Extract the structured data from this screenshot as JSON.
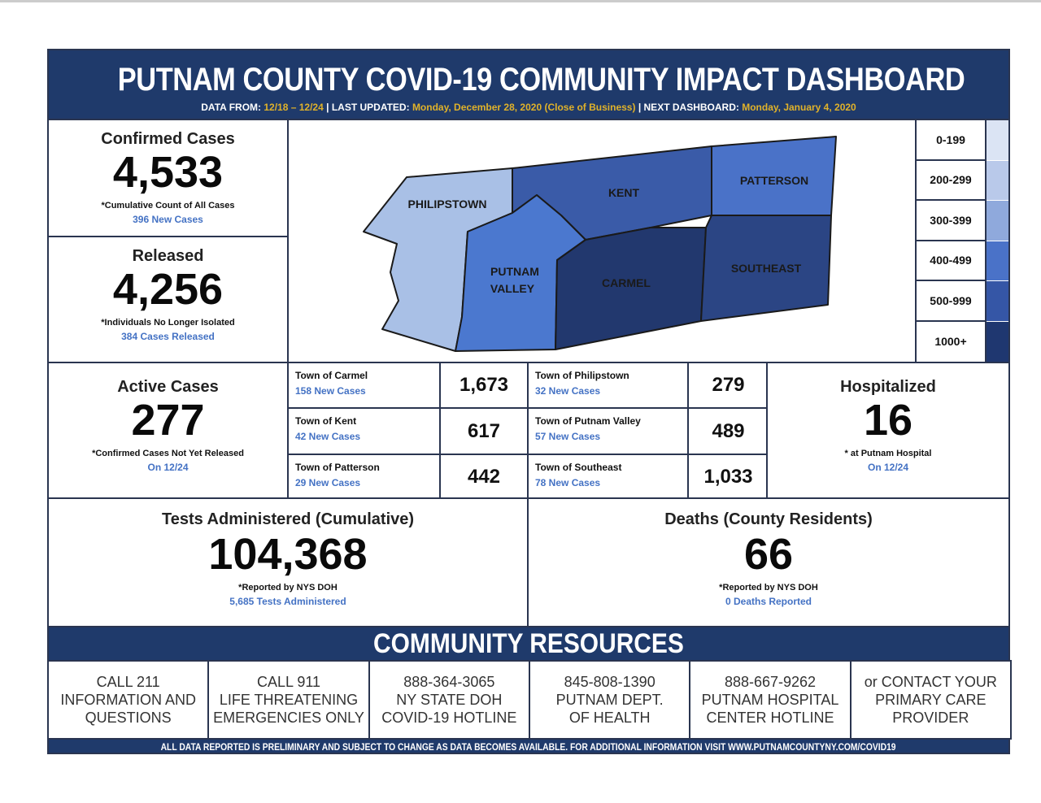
{
  "header": {
    "title": "PUTNAM COUNTY COVID-19 COMMUNITY IMPACT DASHBOARD",
    "data_from_label": "DATA FROM:",
    "data_from": "12/18 – 12/24",
    "last_updated_label": "| LAST UPDATED:",
    "last_updated": "Monday, December 28, 2020 (Close of Business)",
    "next_label": "| NEXT DASHBOARD:",
    "next": "Monday, January 4, 2020"
  },
  "confirmed": {
    "title": "Confirmed Cases",
    "value": "4,533",
    "note": "*Cumulative Count of All Cases",
    "sub": "396 New Cases"
  },
  "released": {
    "title": "Released",
    "value": "4,256",
    "note": "*Individuals No Longer Isolated",
    "sub": "384 Cases Released"
  },
  "active": {
    "title": "Active Cases",
    "value": "277",
    "note": "*Confirmed Cases Not Yet Released",
    "sub": "On 12/24"
  },
  "hospitalized": {
    "title": "Hospitalized",
    "value": "16",
    "note": "* at Putnam Hospital",
    "sub": "On 12/24"
  },
  "tests": {
    "title": "Tests Administered (Cumulative)",
    "value": "104,368",
    "note": "*Reported by NYS DOH",
    "sub": "5,685 Tests Administered"
  },
  "deaths": {
    "title": "Deaths (County Residents)",
    "value": "66",
    "note": "*Reported by NYS DOH",
    "sub": "0 Deaths Reported"
  },
  "map": {
    "philipstown": "PHILIPSTOWN",
    "kent": "KENT",
    "patterson": "PATTERSON",
    "putnam_valley": [
      "PUTNAM",
      "VALLEY"
    ],
    "carmel": "CARMEL",
    "southeast": "SOUTHEAST"
  },
  "legend": [
    "0-199",
    "200-299",
    "300-399",
    "400-499",
    "500-999",
    "1000+"
  ],
  "towns": [
    {
      "name": "Town of Carmel",
      "sub": "158 New Cases",
      "count": "1,673"
    },
    {
      "name": "Town of Philipstown",
      "sub": "32 New Cases",
      "count": "279"
    },
    {
      "name": "Town of Kent",
      "sub": "42 New Cases",
      "count": "617"
    },
    {
      "name": "Town of Putnam Valley",
      "sub": "57 New Cases",
      "count": "489"
    },
    {
      "name": "Town of Patterson",
      "sub": "29 New Cases",
      "count": "442"
    },
    {
      "name": "Town of Southeast",
      "sub": "78 New Cases",
      "count": "1,033"
    }
  ],
  "resources_title": "COMMUNITY RESOURCES",
  "resources": [
    [
      "CALL 211",
      "INFORMATION AND",
      "QUESTIONS"
    ],
    [
      "CALL 911",
      "LIFE THREATENING",
      "EMERGENCIES ONLY"
    ],
    [
      "888-364-3065",
      "NY STATE DOH",
      "COVID-19 HOTLINE"
    ],
    [
      "845-808-1390",
      "PUTNAM DEPT.",
      "OF HEALTH"
    ],
    [
      "888-667-9262",
      "PUTNAM HOSPITAL",
      "CENTER HOTLINE"
    ],
    [
      "or CONTACT YOUR",
      "PRIMARY CARE",
      "PROVIDER"
    ]
  ],
  "footer": "ALL DATA REPORTED IS PRELIMINARY AND SUBJECT TO CHANGE AS DATA BECOMES AVAILABLE. FOR ADDITIONAL INFORMATION VISIT WWW.PUTNAMCOUNTYNY.COM/COVID19"
}
